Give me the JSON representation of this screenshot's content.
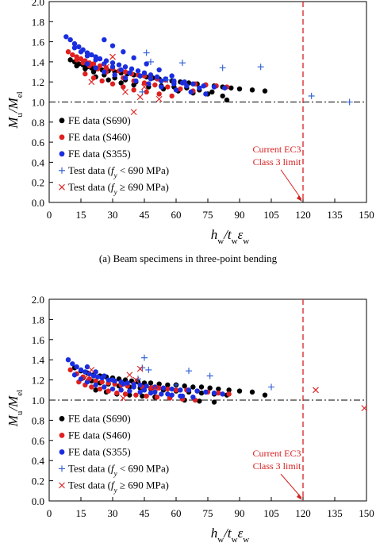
{
  "chart_data": [
    {
      "type": "scatter",
      "caption": "(a) Beam specimens in three-point bending",
      "xlabel": "h_w/t_wε_w",
      "ylabel": "M_u/M_el",
      "xlim": [
        0,
        150
      ],
      "ylim": [
        0.0,
        2.0
      ],
      "xticks": [
        "0",
        "15",
        "30",
        "45",
        "60",
        "75",
        "90",
        "105",
        "120",
        "135",
        "150"
      ],
      "yticks": [
        "0.0",
        "0.2",
        "0.4",
        "0.6",
        "0.8",
        "1.0",
        "1.2",
        "1.4",
        "1.6",
        "1.8",
        "2.0"
      ],
      "reference_line": {
        "y": 1.0,
        "style": "dash-dot"
      },
      "limit_line": {
        "x": 120,
        "label": [
          "Current EC3",
          "Class 3 limit"
        ],
        "color": "#d62020"
      },
      "legend": {
        "placement": "bottom-left"
      },
      "series": [
        {
          "name": "FE data (S690)",
          "marker": "dot",
          "color": "#000000",
          "x": [
            10,
            12,
            14,
            16,
            18,
            20,
            22,
            25,
            28,
            31,
            34,
            37,
            40,
            43,
            46,
            49,
            52,
            55,
            58,
            62,
            66,
            70,
            74,
            78,
            82,
            86,
            90,
            96,
            102,
            13,
            17,
            21,
            26,
            31,
            36,
            41,
            47,
            53,
            59,
            65,
            71,
            77,
            84,
            22,
            28,
            34,
            40,
            47,
            54,
            61,
            68,
            75,
            82
          ],
          "y": [
            1.42,
            1.4,
            1.38,
            1.37,
            1.35,
            1.34,
            1.33,
            1.32,
            1.31,
            1.3,
            1.29,
            1.28,
            1.27,
            1.26,
            1.25,
            1.24,
            1.23,
            1.22,
            1.21,
            1.2,
            1.19,
            1.18,
            1.17,
            1.16,
            1.15,
            1.14,
            1.13,
            1.12,
            1.11,
            1.36,
            1.33,
            1.3,
            1.27,
            1.24,
            1.22,
            1.2,
            1.18,
            1.16,
            1.15,
            1.14,
            1.12,
            1.1,
            1.02,
            1.25,
            1.22,
            1.19,
            1.17,
            1.15,
            1.13,
            1.11,
            1.09,
            1.08,
            1.06
          ]
        },
        {
          "name": "FE data (S460)",
          "marker": "dot",
          "color": "#e02020",
          "x": [
            9,
            11,
            13,
            15,
            17,
            19,
            21,
            24,
            27,
            30,
            33,
            36,
            39,
            42,
            45,
            48,
            51,
            55,
            59,
            64,
            69,
            74,
            79,
            84,
            13,
            16,
            19,
            23,
            27,
            31,
            35,
            40,
            45,
            50,
            56,
            62,
            68,
            17,
            21,
            25,
            30,
            35,
            40,
            46,
            52,
            58
          ],
          "y": [
            1.5,
            1.47,
            1.45,
            1.43,
            1.41,
            1.39,
            1.38,
            1.36,
            1.34,
            1.33,
            1.31,
            1.3,
            1.28,
            1.27,
            1.26,
            1.24,
            1.23,
            1.22,
            1.2,
            1.19,
            1.18,
            1.17,
            1.16,
            1.15,
            1.42,
            1.39,
            1.36,
            1.33,
            1.3,
            1.27,
            1.24,
            1.21,
            1.19,
            1.17,
            1.15,
            1.13,
            1.11,
            1.28,
            1.24,
            1.21,
            1.18,
            1.15,
            1.12,
            1.1,
            1.08,
            1.06
          ]
        },
        {
          "name": "FE data (S355)",
          "marker": "dot",
          "color": "#1a2ee0",
          "x": [
            8,
            10,
            12,
            14,
            16,
            18,
            20,
            22,
            24,
            27,
            30,
            33,
            36,
            39,
            42,
            45,
            48,
            51,
            55,
            59,
            63,
            68,
            73,
            78,
            83,
            12,
            15,
            18,
            22,
            26,
            30,
            34,
            38,
            43,
            48,
            53,
            59,
            65,
            71,
            18,
            22,
            26,
            31,
            36,
            41,
            47,
            53,
            60,
            67,
            74,
            26,
            30,
            35,
            40,
            46,
            52,
            58,
            64
          ],
          "y": [
            1.65,
            1.62,
            1.58,
            1.55,
            1.52,
            1.49,
            1.47,
            1.45,
            1.43,
            1.41,
            1.39,
            1.37,
            1.35,
            1.33,
            1.31,
            1.29,
            1.27,
            1.25,
            1.23,
            1.21,
            1.19,
            1.18,
            1.16,
            1.15,
            1.14,
            1.54,
            1.5,
            1.46,
            1.42,
            1.38,
            1.35,
            1.32,
            1.29,
            1.26,
            1.23,
            1.21,
            1.18,
            1.16,
            1.14,
            1.38,
            1.34,
            1.3,
            1.27,
            1.24,
            1.21,
            1.18,
            1.15,
            1.12,
            1.1,
            1.08,
            1.62,
            1.56,
            1.5,
            1.44,
            1.38,
            1.32,
            1.26,
            1.2
          ]
        },
        {
          "name": "Test data (f_y < 690 MPa)",
          "marker": "plus",
          "color": "#2a5cd6",
          "x": [
            46,
            48,
            63,
            82,
            100,
            124,
            142,
            44,
            56
          ],
          "y": [
            1.49,
            1.4,
            1.39,
            1.34,
            1.35,
            1.06,
            1.0,
            1.1,
            1.22
          ]
        },
        {
          "name": "Test data (f_y ≥ 690 MPa)",
          "marker": "cross",
          "color": "#e02020",
          "x": [
            20,
            30,
            40,
            45,
            52,
            27,
            36,
            43
          ],
          "y": [
            1.2,
            1.45,
            0.9,
            1.15,
            1.03,
            1.35,
            1.1,
            1.05
          ]
        }
      ]
    },
    {
      "type": "scatter",
      "caption": "",
      "xlabel": "h_w/t_wε_w",
      "ylabel": "M_u/M_el",
      "xlim": [
        0,
        150
      ],
      "ylim": [
        0.0,
        2.0
      ],
      "xticks": [
        "0",
        "15",
        "30",
        "45",
        "60",
        "75",
        "90",
        "105",
        "120",
        "135",
        "150"
      ],
      "yticks": [
        "0.0",
        "0.2",
        "0.4",
        "0.6",
        "0.8",
        "1.0",
        "1.2",
        "1.4",
        "1.6",
        "1.8",
        "2.0"
      ],
      "reference_line": {
        "y": 1.0,
        "style": "dash-dot"
      },
      "limit_line": {
        "x": 120,
        "label": [
          "Current EC3",
          "Class 3 limit"
        ],
        "color": "#d62020"
      },
      "legend": {
        "placement": "bottom-left"
      },
      "series": [
        {
          "name": "FE data (S690)",
          "marker": "dot",
          "color": "#000000",
          "x": [
            12,
            15,
            18,
            21,
            24,
            27,
            30,
            33,
            36,
            39,
            42,
            45,
            48,
            52,
            56,
            60,
            64,
            68,
            72,
            76,
            80,
            85,
            90,
            96,
            102,
            16,
            20,
            24,
            28,
            33,
            38,
            43,
            48,
            54,
            60,
            66,
            72,
            78,
            84,
            22,
            27,
            32,
            38,
            44,
            50,
            57,
            64,
            71,
            78
          ],
          "y": [
            1.32,
            1.29,
            1.27,
            1.25,
            1.24,
            1.23,
            1.22,
            1.21,
            1.2,
            1.19,
            1.18,
            1.17,
            1.17,
            1.16,
            1.15,
            1.15,
            1.14,
            1.13,
            1.13,
            1.12,
            1.11,
            1.1,
            1.09,
            1.08,
            1.05,
            1.22,
            1.19,
            1.17,
            1.16,
            1.14,
            1.13,
            1.12,
            1.11,
            1.1,
            1.09,
            1.08,
            1.07,
            1.06,
            1.05,
            1.1,
            1.08,
            1.06,
            1.05,
            1.04,
            1.03,
            1.02,
            1.0,
            0.99,
            0.98
          ]
        },
        {
          "name": "FE data (S460)",
          "marker": "dot",
          "color": "#e02020",
          "x": [
            10,
            13,
            16,
            19,
            22,
            25,
            28,
            31,
            34,
            37,
            40,
            44,
            48,
            52,
            56,
            60,
            65,
            70,
            75,
            80,
            85,
            14,
            17,
            20,
            24,
            28,
            32,
            36,
            41,
            46,
            51,
            57,
            63,
            69
          ],
          "y": [
            1.3,
            1.26,
            1.23,
            1.21,
            1.19,
            1.18,
            1.17,
            1.16,
            1.15,
            1.14,
            1.14,
            1.13,
            1.12,
            1.12,
            1.11,
            1.1,
            1.1,
            1.09,
            1.08,
            1.07,
            1.06,
            1.18,
            1.15,
            1.13,
            1.11,
            1.09,
            1.07,
            1.06,
            1.05,
            1.04,
            1.03,
            1.02,
            1.01,
            1.0
          ]
        },
        {
          "name": "FE data (S355)",
          "marker": "dot",
          "color": "#1a2ee0",
          "x": [
            9,
            11,
            13,
            15,
            17,
            19,
            21,
            23,
            25,
            28,
            31,
            34,
            37,
            40,
            43,
            46,
            50,
            54,
            58,
            62,
            66,
            70,
            74,
            78,
            82,
            12,
            15,
            18,
            22,
            26,
            30,
            34,
            38,
            43,
            48,
            53,
            58,
            63,
            68,
            18,
            22,
            26,
            30,
            35,
            40,
            45,
            50,
            56,
            62
          ],
          "y": [
            1.4,
            1.36,
            1.33,
            1.3,
            1.28,
            1.26,
            1.24,
            1.23,
            1.22,
            1.2,
            1.19,
            1.18,
            1.17,
            1.16,
            1.15,
            1.14,
            1.13,
            1.12,
            1.11,
            1.1,
            1.1,
            1.09,
            1.08,
            1.07,
            1.06,
            1.25,
            1.21,
            1.18,
            1.15,
            1.13,
            1.11,
            1.1,
            1.09,
            1.08,
            1.07,
            1.06,
            1.05,
            1.04,
            1.03,
            1.33,
            1.28,
            1.24,
            1.2,
            1.16,
            1.13,
            1.1,
            1.08,
            1.06,
            1.04
          ]
        },
        {
          "name": "Test data (f_y < 690 MPa)",
          "marker": "plus",
          "color": "#2a5cd6",
          "x": [
            45,
            44,
            47,
            66,
            76,
            105,
            42,
            60
          ],
          "y": [
            1.42,
            1.32,
            1.3,
            1.29,
            1.24,
            1.13,
            1.21,
            1.15
          ]
        },
        {
          "name": "Test data (f_y ≥ 690 MPa)",
          "marker": "cross",
          "color": "#e02020",
          "x": [
            17,
            20,
            38,
            43,
            41,
            126,
            149,
            35,
            50
          ],
          "y": [
            1.22,
            1.3,
            1.25,
            1.31,
            1.2,
            1.1,
            0.92,
            1.02,
            1.12
          ]
        }
      ]
    }
  ]
}
